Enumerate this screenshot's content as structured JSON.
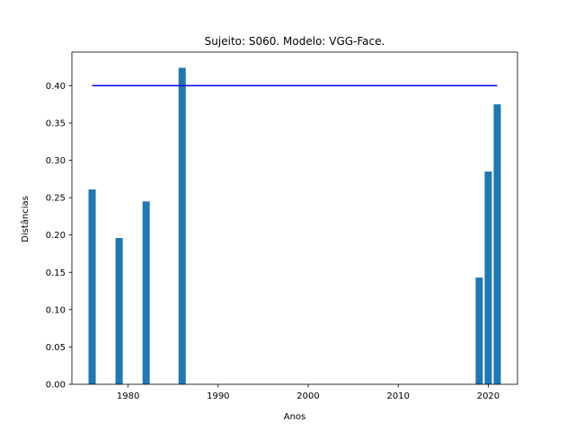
{
  "chart_data": {
    "type": "bar",
    "title": "Sujeito: S060. Modelo: VGG-Face.",
    "xlabel": "Anos",
    "ylabel": "Distâncias",
    "xlim": [
      1973.75,
      2023.25
    ],
    "ylim": [
      0,
      0.445
    ],
    "xticks": [
      1980,
      1990,
      2000,
      2010,
      2020
    ],
    "xtick_labels": [
      "1980",
      "1990",
      "2000",
      "2010",
      "2020"
    ],
    "yticks": [
      0,
      0.05,
      0.1,
      0.15,
      0.2,
      0.25,
      0.3,
      0.35,
      0.4
    ],
    "ytick_labels": [
      "0.00",
      "0.05",
      "0.10",
      "0.15",
      "0.20",
      "0.25",
      "0.30",
      "0.35",
      "0.40"
    ],
    "grid": false,
    "bar_width_years": 0.8,
    "x": [
      1976,
      1979,
      1982,
      1986,
      2019,
      2020,
      2021
    ],
    "values": [
      0.261,
      0.196,
      0.245,
      0.424,
      0.143,
      0.285,
      0.375
    ],
    "bar_color": "#1f77b4",
    "threshold": {
      "y": 0.4,
      "x_from": 1976,
      "x_to": 2021,
      "color": "#0000ff"
    }
  }
}
